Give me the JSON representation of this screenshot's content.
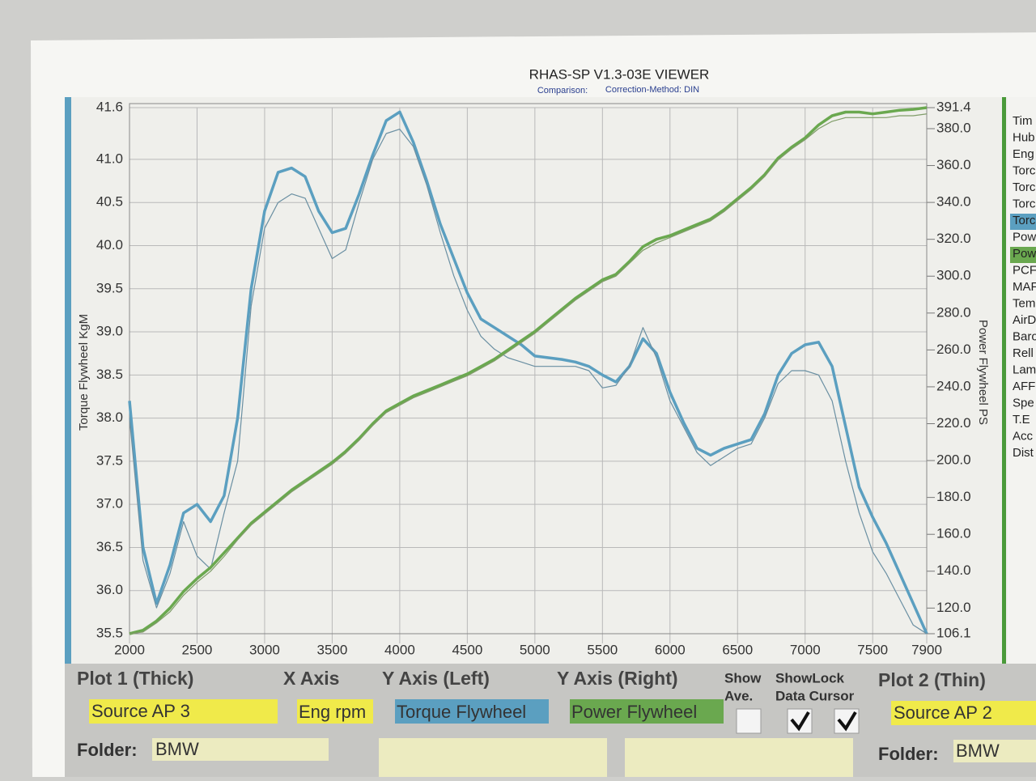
{
  "chart_data": {
    "type": "line",
    "title": "RHAS-SP V1.3-03E VIEWER",
    "subtitle_left": "Comparison:",
    "subtitle_right": "Correction-Method: DIN",
    "y_label": "Torque Flywheel KgM",
    "y2_label": "Power Flywheel PS",
    "grid": true,
    "xlim": [
      2000,
      7900
    ],
    "xticks": [
      2000,
      2500,
      3000,
      3500,
      4000,
      4500,
      5000,
      5500,
      6000,
      6500,
      7000,
      7500,
      7900
    ],
    "ylim": [
      35.5,
      41.6
    ],
    "yticks": [
      35.5,
      {
        "value": 36,
        "label": "36.0"
      },
      36.5,
      {
        "value": 37,
        "label": "37.0"
      },
      37.5,
      {
        "value": 38,
        "label": "38.0"
      },
      38.5,
      {
        "value": 39,
        "label": "39.0"
      },
      39.5,
      {
        "value": 40,
        "label": "40.0"
      },
      40.5,
      {
        "value": 41,
        "label": "41.0"
      },
      41.6
    ],
    "y2lim": [
      106.1,
      391.4
    ],
    "y2ticks": [
      106.1,
      {
        "value": 120,
        "label": "120.0"
      },
      {
        "value": 140,
        "label": "140.0"
      },
      {
        "value": 160,
        "label": "160.0"
      },
      {
        "value": 180,
        "label": "180.0"
      },
      {
        "value": 200,
        "label": "200.0"
      },
      {
        "value": 220,
        "label": "220.0"
      },
      {
        "value": 240,
        "label": "240.0"
      },
      {
        "value": 260,
        "label": "260.0"
      },
      {
        "value": 280,
        "label": "280.0"
      },
      {
        "value": 300,
        "label": "300.0"
      },
      {
        "value": 320,
        "label": "320.0"
      },
      {
        "value": 340,
        "label": "340.0"
      },
      {
        "value": 360,
        "label": "360.0"
      },
      {
        "value": 380,
        "label": "380.0"
      },
      391.4
    ],
    "x": [
      2000,
      2100,
      2200,
      2300,
      2400,
      2500,
      2600,
      2700,
      2800,
      2900,
      3000,
      3100,
      3200,
      3300,
      3400,
      3500,
      3600,
      3700,
      3800,
      3900,
      4000,
      4100,
      4200,
      4300,
      4400,
      4500,
      4600,
      4700,
      4800,
      4900,
      5000,
      5100,
      5200,
      5300,
      5400,
      5500,
      5600,
      5700,
      5800,
      5900,
      6000,
      6100,
      6200,
      6300,
      6400,
      6500,
      6600,
      6700,
      6800,
      6900,
      7000,
      7100,
      7200,
      7300,
      7400,
      7500,
      7600,
      7700,
      7800,
      7900
    ],
    "series": [
      {
        "color": "#5b9fc0",
        "width": 3.5,
        "values": [
          38.2,
          36.5,
          35.85,
          36.3,
          36.9,
          37.0,
          36.8,
          37.1,
          38.0,
          39.5,
          40.4,
          40.85,
          40.9,
          40.8,
          40.4,
          40.15,
          40.2,
          40.6,
          41.05,
          41.45,
          41.55,
          41.2,
          40.75,
          40.25,
          39.85,
          39.45,
          39.15,
          39.05,
          38.95,
          38.85,
          38.72,
          38.7,
          38.68,
          38.65,
          38.6,
          38.5,
          38.42,
          38.6,
          38.92,
          38.75,
          38.3,
          37.95,
          37.65,
          37.57,
          37.65,
          37.7,
          37.75,
          38.05,
          38.5,
          38.75,
          38.85,
          38.88,
          38.6,
          37.9,
          37.2,
          36.85,
          36.55,
          36.2,
          35.85,
          35.5
        ]
      },
      {
        "color": "#6a8fa2",
        "width": 1.2,
        "values": [
          38.0,
          36.35,
          35.8,
          36.2,
          36.8,
          36.4,
          36.25,
          36.9,
          37.5,
          39.3,
          40.2,
          40.5,
          40.6,
          40.55,
          40.2,
          39.85,
          39.95,
          40.5,
          41.0,
          41.3,
          41.35,
          41.15,
          40.7,
          40.15,
          39.65,
          39.25,
          38.95,
          38.8,
          38.7,
          38.65,
          38.6,
          38.6,
          38.6,
          38.6,
          38.55,
          38.35,
          38.38,
          38.6,
          39.05,
          38.7,
          38.2,
          37.9,
          37.6,
          37.45,
          37.55,
          37.65,
          37.7,
          38.0,
          38.4,
          38.55,
          38.55,
          38.5,
          38.2,
          37.5,
          36.9,
          36.45,
          36.2,
          35.9,
          35.6,
          35.5
        ]
      },
      {
        "color": "#6aa84f",
        "width": 3.5,
        "axis": "y2",
        "values": [
          106.1,
          108,
          113,
          120,
          129,
          136,
          142,
          150,
          158,
          166,
          172,
          178,
          184,
          189,
          194,
          199,
          205,
          212,
          220,
          227,
          231,
          235,
          238,
          241,
          244,
          247,
          251,
          255,
          260,
          265,
          270,
          276,
          282,
          288,
          293,
          298,
          301,
          308,
          316,
          320,
          322,
          325,
          328,
          331,
          336,
          342,
          348,
          355,
          364,
          370,
          375,
          382,
          387,
          389,
          389,
          388,
          389,
          390,
          390.5,
          391.4
        ]
      },
      {
        "color": "#7f9c68",
        "width": 1.2,
        "axis": "y2",
        "values": [
          106.1,
          107,
          112,
          118,
          127,
          134,
          140,
          148,
          157,
          165,
          171,
          177,
          183,
          188,
          193,
          198,
          204,
          211,
          219,
          226,
          230,
          234,
          237,
          240,
          243,
          246,
          250,
          254,
          259,
          264,
          269,
          275,
          281,
          287,
          292,
          297,
          300,
          307,
          314,
          318,
          321,
          324,
          327,
          330,
          335,
          341,
          347,
          354,
          363,
          369,
          374,
          380,
          384,
          386,
          386,
          386,
          386,
          387,
          387,
          388
        ]
      }
    ]
  },
  "side_list": [
    "Tim",
    "Hub",
    "Eng",
    "Torc",
    "Torc",
    "Torc",
    "Torc",
    "Pow",
    "Pow",
    "PCF",
    "MAF",
    "Tem",
    "AirD",
    "Baro",
    "Rell",
    "Lam",
    "AFF",
    "Spe",
    "T.E",
    "Acc",
    "Dist"
  ],
  "panel": {
    "plot1": "Plot 1 (Thick)",
    "x_axis": "X Axis",
    "y_left": "Y Axis (Left)",
    "y_right": "Y Axis (Right)",
    "show": "Show",
    "ave": "Ave.",
    "show_lock": "ShowLock",
    "data_cursor": "Data Cursor",
    "plot2": "Plot 2 (Thin)",
    "source1": "Source AP 3",
    "x_field": "Eng rpm",
    "y_left_field": "Torque Flywheel",
    "y_right_field": "Power Flywheel",
    "source2": "Source AP 2",
    "folder1_label": "Folder:",
    "folder1": "BMW",
    "folder2_label": "Folder:",
    "folder2": "BMW"
  }
}
